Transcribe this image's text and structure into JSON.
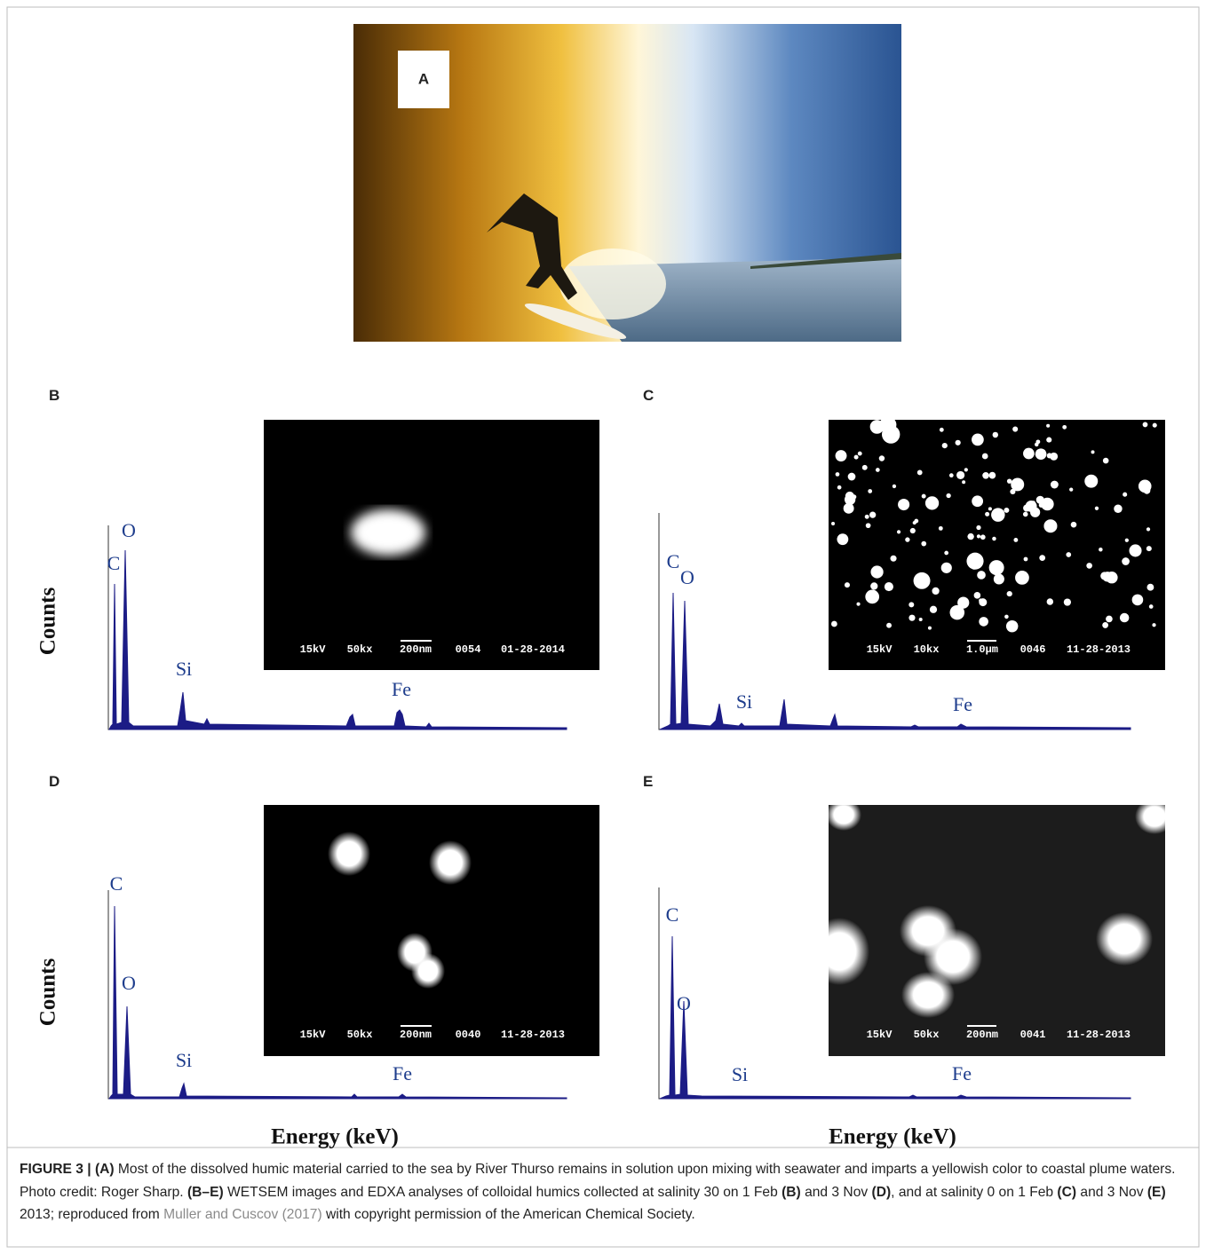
{
  "photo": {
    "label": "A"
  },
  "panels": [
    {
      "label": "B",
      "y_axis_label": "Counts",
      "peaks": [
        "C",
        "O",
        "Si",
        "Fe"
      ],
      "inset_caption": [
        "15kV",
        "50kx",
        "200nm",
        "0054",
        "01-28-2014"
      ]
    },
    {
      "label": "C",
      "peaks": [
        "C",
        "O",
        "Si",
        "Fe"
      ],
      "inset_caption": [
        "15kV",
        "10kx",
        "1.0µm",
        "0046",
        "11-28-2013"
      ]
    },
    {
      "label": "D",
      "y_axis_label": "Counts",
      "x_axis_label": "Energy (keV)",
      "peaks": [
        "C",
        "O",
        "Si",
        "Fe"
      ],
      "inset_caption": [
        "15kV",
        "50kx",
        "200nm",
        "0040",
        "11-28-2013"
      ]
    },
    {
      "label": "E",
      "x_axis_label": "Energy (keV)",
      "peaks": [
        "C",
        "O",
        "Si",
        "Fe"
      ],
      "inset_caption": [
        "15kV",
        "50kx",
        "200nm",
        "0041",
        "11-28-2013"
      ]
    }
  ],
  "caption": [
    {
      "text": "FIGURE 3 | (A)",
      "style": "bold"
    },
    {
      "text": " Most of the dissolved humic material carried to the sea by River Thurso remains in solution upon mixing with seawater and imparts a yellowish color to coastal plume waters. Photo credit: Roger Sharp. ",
      "style": "normal"
    },
    {
      "text": "(B–E)",
      "style": "bold"
    },
    {
      "text": " WETSEM images and EDXA analyses of colloidal humics collected at salinity 30 on 1 Feb ",
      "style": "normal"
    },
    {
      "text": "(B)",
      "style": "bold"
    },
    {
      "text": " and 3 Nov ",
      "style": "normal"
    },
    {
      "text": "(D)",
      "style": "bold"
    },
    {
      "text": ", and at salinity 0 on 1 Feb ",
      "style": "normal"
    },
    {
      "text": "(C)",
      "style": "bold"
    },
    {
      "text": " and 3 Nov ",
      "style": "normal"
    },
    {
      "text": "(E)",
      "style": "bold"
    },
    {
      "text": " 2013; reproduced from ",
      "style": "normal"
    },
    {
      "text": "Muller and Cuscov (2017)",
      "style": "link"
    },
    {
      "text": " with copyright permission of the American Chemical Society.",
      "style": "normal"
    }
  ]
}
